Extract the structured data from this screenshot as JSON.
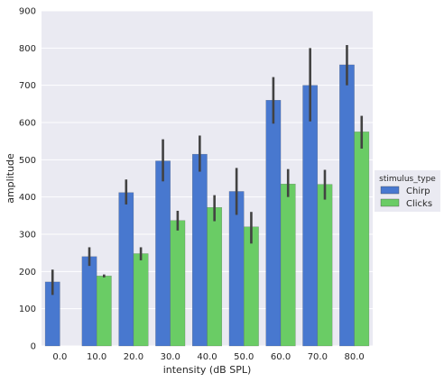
{
  "chart_data": {
    "type": "bar",
    "categories": [
      "0.0",
      "10.0",
      "20.0",
      "30.0",
      "40.0",
      "50.0",
      "60.0",
      "70.0",
      "80.0"
    ],
    "series": [
      {
        "name": "Chirp",
        "color": "#4878cf",
        "values": [
          172,
          240,
          412,
          497,
          515,
          415,
          660,
          700,
          755
        ],
        "err_low": [
          137,
          215,
          380,
          442,
          468,
          352,
          597,
          603,
          700
        ],
        "err_high": [
          205,
          265,
          447,
          555,
          565,
          478,
          722,
          800,
          808
        ]
      },
      {
        "name": "Clicks",
        "color": "#6acc65",
        "values": [
          null,
          188,
          248,
          337,
          372,
          320,
          435,
          434,
          575
        ],
        "err_low": [
          null,
          184,
          230,
          310,
          335,
          275,
          400,
          393,
          530
        ],
        "err_high": [
          null,
          192,
          265,
          363,
          405,
          360,
          475,
          473,
          618
        ]
      }
    ],
    "xlabel": "intensity (dB SPL)",
    "ylabel": "amplitude",
    "ylim": [
      0,
      900
    ],
    "yticks": [
      "0",
      "100",
      "200",
      "300",
      "400",
      "500",
      "600",
      "700",
      "800",
      "900"
    ],
    "legend": {
      "title": "stimulus_type",
      "placement": "right"
    },
    "grid": true,
    "colors": {
      "plot_background": "#eaeaf2",
      "grid": "#ffffff",
      "errorbar": "#424242"
    }
  }
}
